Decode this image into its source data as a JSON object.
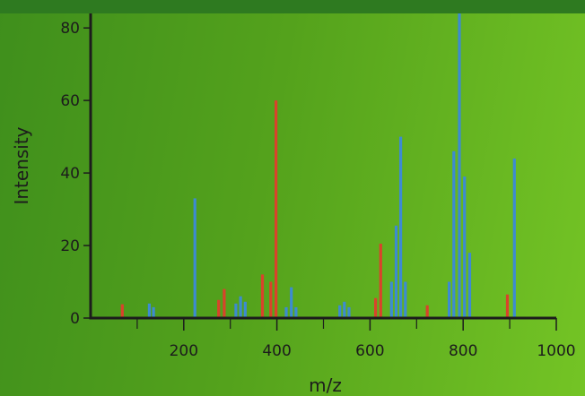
{
  "chart_data": {
    "type": "bar",
    "title": "",
    "xlabel": "m/z",
    "ylabel": "Intensity",
    "xlim": [
      0,
      1000
    ],
    "ylim": [
      0,
      84
    ],
    "x_ticks": [
      200,
      400,
      600,
      800,
      1000
    ],
    "x_minor_ticks": [
      100,
      300,
      500,
      700,
      900
    ],
    "y_ticks": [
      0,
      20,
      40,
      60,
      80
    ],
    "grid": false,
    "legend": "none",
    "bar_width": 10,
    "colors": {
      "red": "#d9432b",
      "blue": "#3d8bd1",
      "axis": "#1c1c1c"
    },
    "series": [
      {
        "color": "red",
        "points": [
          {
            "x": 68,
            "y": 3.8
          },
          {
            "x": 275,
            "y": 5
          },
          {
            "x": 287,
            "y": 8
          },
          {
            "x": 369,
            "y": 12
          },
          {
            "x": 387,
            "y": 10
          },
          {
            "x": 398,
            "y": 60
          },
          {
            "x": 612,
            "y": 5.5
          },
          {
            "x": 623,
            "y": 20.5
          },
          {
            "x": 723,
            "y": 3.5
          },
          {
            "x": 895,
            "y": 6.5
          }
        ]
      },
      {
        "color": "blue",
        "points": [
          {
            "x": 126,
            "y": 4
          },
          {
            "x": 135,
            "y": 3
          },
          {
            "x": 224,
            "y": 33
          },
          {
            "x": 312,
            "y": 4
          },
          {
            "x": 322,
            "y": 6
          },
          {
            "x": 332,
            "y": 4.5
          },
          {
            "x": 420,
            "y": 3
          },
          {
            "x": 431,
            "y": 8.5
          },
          {
            "x": 441,
            "y": 3
          },
          {
            "x": 535,
            "y": 3.5
          },
          {
            "x": 545,
            "y": 4.5
          },
          {
            "x": 555,
            "y": 3
          },
          {
            "x": 646,
            "y": 10
          },
          {
            "x": 656,
            "y": 25.5
          },
          {
            "x": 666,
            "y": 50
          },
          {
            "x": 676,
            "y": 10
          },
          {
            "x": 770,
            "y": 10
          },
          {
            "x": 780,
            "y": 46
          },
          {
            "x": 792,
            "y": 84
          },
          {
            "x": 803,
            "y": 39
          },
          {
            "x": 814,
            "y": 18
          },
          {
            "x": 910,
            "y": 44
          }
        ]
      }
    ]
  }
}
